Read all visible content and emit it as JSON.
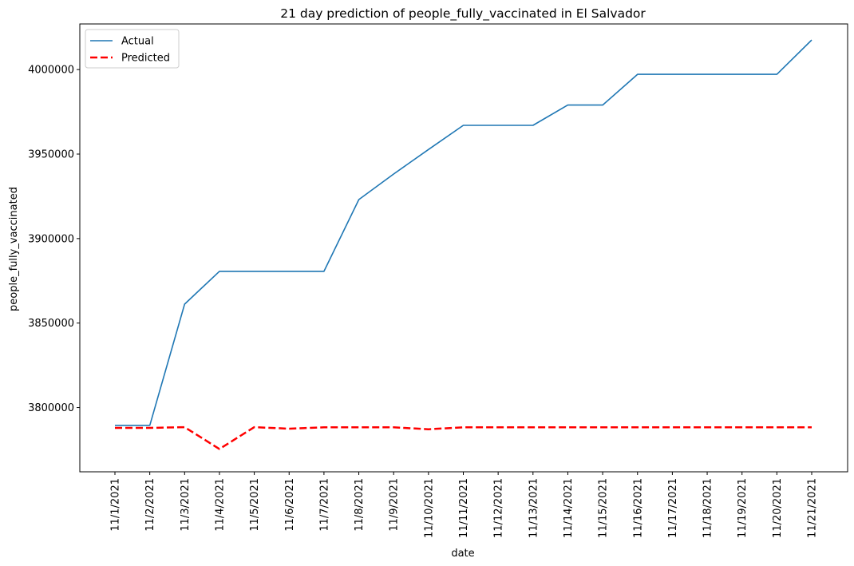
{
  "chart_data": {
    "type": "line",
    "title": "21 day prediction of people_fully_vaccinated in El Salvador",
    "xlabel": "date",
    "ylabel": "people_fully_vaccinated",
    "categories": [
      "11/1/2021",
      "11/2/2021",
      "11/3/2021",
      "11/4/2021",
      "11/5/2021",
      "11/6/2021",
      "11/7/2021",
      "11/8/2021",
      "11/9/2021",
      "11/10/2021",
      "11/11/2021",
      "11/12/2021",
      "11/13/2021",
      "11/14/2021",
      "11/15/2021",
      "11/16/2021",
      "11/17/2021",
      "11/18/2021",
      "11/19/2021",
      "11/20/2021",
      "11/21/2021"
    ],
    "yticks": [
      3800000,
      3850000,
      3900000,
      3950000,
      4000000
    ],
    "ytick_labels": [
      "3800000",
      "3850000",
      "3900000",
      "3950000",
      "4000000"
    ],
    "ylim": [
      3762000,
      4027000
    ],
    "grid": false,
    "legend_position": "upper-left",
    "series": [
      {
        "name": "Actual",
        "color": "#1f77b4",
        "dash": "solid",
        "values": [
          3789500,
          3789500,
          3861200,
          3880600,
          3880600,
          3880600,
          3880600,
          3923100,
          3938200,
          3952700,
          3967000,
          3967000,
          3967000,
          3979000,
          3979000,
          3997200,
          3997200,
          3997200,
          3997200,
          3997200,
          4017500
        ]
      },
      {
        "name": "Predicted",
        "color": "#ff0000",
        "dash": "dashed",
        "values": [
          3788000,
          3788000,
          3788400,
          3775500,
          3788400,
          3787500,
          3788300,
          3788300,
          3788300,
          3787200,
          3788300,
          3788300,
          3788300,
          3788300,
          3788300,
          3788300,
          3788300,
          3788300,
          3788300,
          3788300,
          3788300
        ]
      }
    ]
  }
}
